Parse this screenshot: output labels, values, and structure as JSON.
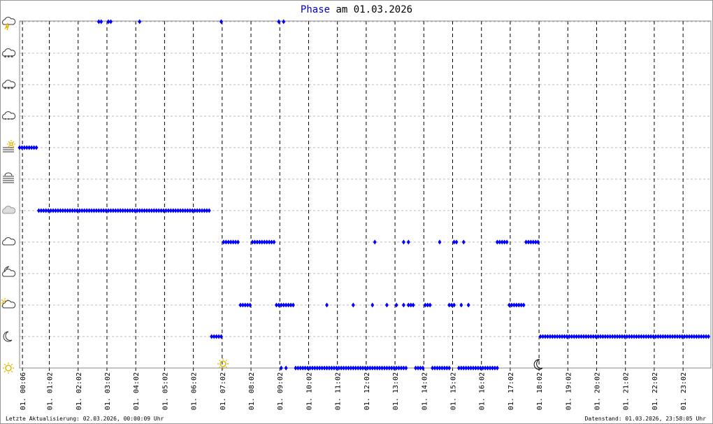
{
  "chart_data": {
    "type": "scatter",
    "title_highlight": "Phase",
    "title_rest": "am 01.03.2026",
    "footer_left": "Letzte Aktualisierung: 02.03.2026, 00:00:09 Uhr",
    "footer_right": "Datenstand: 01.03.2026, 23:58:05 Uhr",
    "color": "#0000ff",
    "grid": true,
    "xlim": [
      0,
      1440
    ],
    "ylim": [
      0,
      11
    ],
    "yticks": [
      0,
      1,
      2,
      3,
      4,
      5,
      6,
      7,
      8,
      9,
      10,
      11
    ],
    "xticks": [
      {
        "value": 6,
        "label": "01. 00:06"
      },
      {
        "value": 62,
        "label": "01. 01:02"
      },
      {
        "value": 122,
        "label": "01. 02:02"
      },
      {
        "value": 182,
        "label": "01. 03:02"
      },
      {
        "value": 242,
        "label": "01. 04:02"
      },
      {
        "value": 302,
        "label": "01. 05:02"
      },
      {
        "value": 362,
        "label": "01. 06:02"
      },
      {
        "value": 422,
        "label": "01. 07:02"
      },
      {
        "value": 482,
        "label": "01. 08:02"
      },
      {
        "value": 542,
        "label": "01. 09:02"
      },
      {
        "value": 602,
        "label": "01. 10:02"
      },
      {
        "value": 662,
        "label": "01. 11:02"
      },
      {
        "value": 722,
        "label": "01. 12:02"
      },
      {
        "value": 782,
        "label": "01. 13:02"
      },
      {
        "value": 842,
        "label": "01. 14:02"
      },
      {
        "value": 902,
        "label": "01. 15:02"
      },
      {
        "value": 962,
        "label": "01. 16:02"
      },
      {
        "value": 1022,
        "label": "01. 17:02"
      },
      {
        "value": 1082,
        "label": "01. 18:02"
      },
      {
        "value": 1142,
        "label": "01. 19:02"
      },
      {
        "value": 1202,
        "label": "01. 20:02"
      },
      {
        "value": 1262,
        "label": "01. 21:02"
      },
      {
        "value": 1322,
        "label": "01. 22:02"
      },
      {
        "value": 1382,
        "label": "01. 23:02"
      }
    ],
    "x": [
      0,
      5,
      10,
      15,
      20,
      25,
      30,
      35,
      40,
      45,
      50,
      55,
      60,
      65,
      70,
      75,
      80,
      85,
      90,
      95,
      100,
      105,
      110,
      115,
      120,
      125,
      130,
      135,
      140,
      145,
      150,
      155,
      160,
      165,
      170,
      175,
      180,
      185,
      190,
      195,
      200,
      205,
      210,
      215,
      220,
      225,
      230,
      235,
      240,
      245,
      250,
      255,
      260,
      265,
      270,
      275,
      280,
      285,
      290,
      295,
      300,
      305,
      310,
      315,
      320,
      325,
      330,
      335,
      340,
      345,
      350,
      355,
      360,
      365,
      370,
      375,
      380,
      385,
      390,
      395,
      165,
      170,
      185,
      190,
      250,
      420,
      540,
      550,
      400,
      405,
      410,
      415,
      420,
      425,
      430,
      435,
      440,
      445,
      450,
      455,
      460,
      465,
      470,
      475,
      480,
      485,
      490,
      495,
      500,
      505,
      510,
      515,
      520,
      525,
      530,
      535,
      540,
      545,
      550,
      555,
      560,
      565,
      570,
      545,
      555,
      575,
      580,
      585,
      590,
      595,
      600,
      605,
      610,
      615,
      620,
      625,
      630,
      635,
      640,
      645,
      650,
      655,
      660,
      665,
      670,
      675,
      680,
      685,
      690,
      695,
      700,
      705,
      710,
      715,
      720,
      725,
      730,
      735,
      740,
      745,
      750,
      755,
      760,
      765,
      770,
      775,
      780,
      785,
      790,
      795,
      800,
      805,
      640,
      695,
      735,
      765,
      785,
      800,
      810,
      815,
      820,
      740,
      800,
      810,
      825,
      830,
      835,
      840,
      845,
      850,
      855,
      860,
      865,
      870,
      875,
      880,
      885,
      890,
      895,
      875,
      895,
      900,
      905,
      920,
      935,
      905,
      910,
      925,
      915,
      920,
      925,
      930,
      935,
      940,
      945,
      950,
      955,
      960,
      965,
      970,
      975,
      980,
      985,
      990,
      995,
      995,
      1000,
      1005,
      1010,
      1015,
      1020,
      1025,
      1030,
      1035,
      1040,
      1045,
      1050,
      1055,
      1060,
      1065,
      1070,
      1075,
      1080,
      1085,
      1090,
      1095,
      1100,
      1105,
      1110,
      1115,
      1120,
      1125,
      1130,
      1135,
      1140,
      1145,
      1150,
      1155,
      1160,
      1165,
      1170,
      1175,
      1180,
      1185,
      1190,
      1195,
      1200,
      1205,
      1210,
      1215,
      1220,
      1225,
      1230,
      1235,
      1240,
      1245,
      1250,
      1255,
      1260,
      1265,
      1270,
      1275,
      1280,
      1285,
      1290,
      1295,
      1300,
      1305,
      1310,
      1315,
      1320,
      1325,
      1330,
      1335,
      1340,
      1345,
      1350,
      1355,
      1360,
      1365,
      1370,
      1375,
      1380,
      1385,
      1390,
      1395,
      1400,
      1405,
      1410,
      1415,
      1420,
      1425,
      1430,
      1435
    ],
    "values": [
      7,
      7,
      7,
      7,
      7,
      7,
      7,
      7,
      5,
      5,
      5,
      5,
      5,
      5,
      5,
      5,
      5,
      5,
      5,
      5,
      5,
      5,
      5,
      5,
      5,
      5,
      5,
      5,
      5,
      5,
      5,
      5,
      5,
      5,
      5,
      5,
      5,
      5,
      5,
      5,
      5,
      5,
      5,
      5,
      5,
      5,
      5,
      5,
      5,
      5,
      5,
      5,
      5,
      5,
      5,
      5,
      5,
      5,
      5,
      5,
      5,
      5,
      5,
      5,
      5,
      5,
      5,
      5,
      5,
      5,
      5,
      5,
      5,
      5,
      5,
      5,
      5,
      5,
      5,
      5,
      11,
      11,
      11,
      11,
      11,
      11,
      11,
      11,
      1,
      1,
      1,
      1,
      1,
      4,
      4,
      4,
      4,
      4,
      4,
      4,
      2,
      2,
      2,
      2,
      2,
      4,
      4,
      4,
      4,
      4,
      4,
      4,
      4,
      4,
      4,
      2,
      2,
      2,
      2,
      2,
      2,
      2,
      2,
      0,
      0,
      0,
      0,
      0,
      0,
      0,
      0,
      0,
      0,
      0,
      0,
      0,
      0,
      0,
      0,
      0,
      0,
      0,
      0,
      0,
      0,
      0,
      0,
      0,
      0,
      0,
      0,
      0,
      0,
      0,
      0,
      0,
      0,
      0,
      0,
      0,
      0,
      0,
      0,
      0,
      0,
      0,
      0,
      0,
      0,
      0,
      0,
      0,
      2,
      2,
      2,
      2,
      2,
      2,
      2,
      2,
      2,
      4,
      4,
      4,
      0,
      0,
      0,
      0,
      2,
      2,
      2,
      0,
      0,
      0,
      0,
      0,
      0,
      0,
      0,
      4,
      2,
      2,
      2,
      2,
      2,
      4,
      4,
      4,
      0,
      0,
      0,
      0,
      0,
      0,
      0,
      0,
      0,
      0,
      0,
      0,
      0,
      0,
      0,
      0,
      0,
      4,
      4,
      4,
      4,
      4,
      2,
      2,
      2,
      2,
      2,
      2,
      2,
      4,
      4,
      4,
      4,
      4,
      4,
      1,
      1,
      1,
      1,
      1,
      1,
      1,
      1,
      1,
      1,
      1,
      1,
      1,
      1,
      1,
      1,
      1,
      1,
      1,
      1,
      1,
      1,
      1,
      1,
      1,
      1,
      1,
      1,
      1,
      1,
      1,
      1,
      1,
      1,
      1,
      1,
      1,
      1,
      1,
      1,
      1,
      1,
      1,
      1,
      1,
      1,
      1,
      1,
      1,
      1,
      1,
      1,
      1,
      1,
      1,
      1,
      1,
      1,
      1,
      1,
      1,
      1,
      1,
      1,
      1,
      1,
      1,
      1,
      1,
      1,
      1
    ]
  }
}
